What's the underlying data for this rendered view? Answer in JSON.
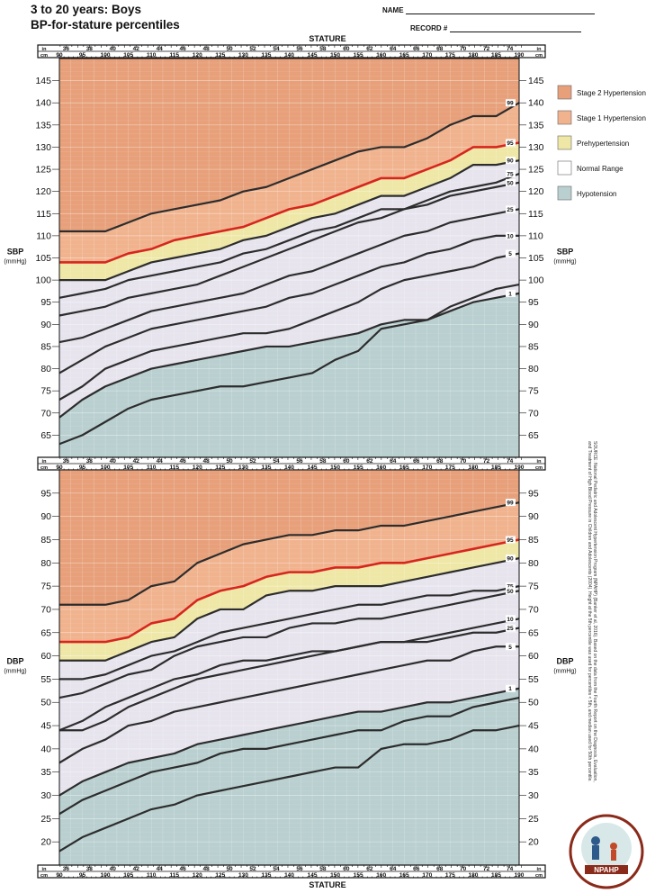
{
  "header": {
    "title_line1": "3 to 20 years: Boys",
    "title_line2": "BP-for-stature percentiles",
    "name_label": "NAME",
    "record_label": "RECORD #"
  },
  "colors": {
    "stage2": "#E7A07A",
    "stage1": "#F0B38E",
    "prehypertension": "#EEE7A6",
    "normal": "#E7E4EE",
    "hypotension": "#B9CFD0",
    "red_line": "#D7261E",
    "dark_line": "#2D2D2D"
  },
  "legend": [
    {
      "label": "Stage 2 Hypertension",
      "color": "#E7A07A"
    },
    {
      "label": "Stage 1 Hypertension",
      "color": "#F0B38E"
    },
    {
      "label": "Prehypertension",
      "color": "#EEE7A6"
    },
    {
      "label": "Normal Range",
      "color": "#FFFFFF"
    },
    {
      "label": "Hypotension",
      "color": "#B9CFD0"
    }
  ],
  "stature_axis": {
    "title": "STATURE",
    "in_label": "in",
    "cm_label": "cm",
    "inches": [
      "36",
      "38",
      "40",
      "42",
      "44",
      "46",
      "48",
      "50",
      "52",
      "54",
      "56",
      "58",
      "60",
      "62",
      "64",
      "66",
      "68",
      "70",
      "72",
      "74"
    ],
    "cm": [
      "90",
      "95",
      "100",
      "105",
      "110",
      "115",
      "120",
      "125",
      "130",
      "135",
      "140",
      "145",
      "150",
      "155",
      "160",
      "165",
      "170",
      "175",
      "180",
      "185",
      "190"
    ]
  },
  "source_note": "SOURCE: National Pediatric and Adolescent Hypertension Program (NPAHP) (Banker et al, 2016). Based on the data from the Fourth Report on the Diagnosis, Evaluation, and Treatment of High Blood Pressure in Children and Adolescents (2004). Height at the 5th percentile was used for percentiles < 5th, and median used for 50th percentile.",
  "logo_text": "NPAHP",
  "chart_data": [
    {
      "type": "line",
      "title": "SBP",
      "ylabel": "SBP (mmHg)",
      "xlabel": "STATURE",
      "x_unit": "cm",
      "ylim": [
        60,
        150
      ],
      "y_ticks": [
        65,
        70,
        75,
        80,
        85,
        90,
        95,
        100,
        105,
        110,
        115,
        120,
        125,
        130,
        135,
        140,
        145
      ],
      "x": [
        90,
        95,
        100,
        105,
        110,
        115,
        120,
        125,
        130,
        135,
        140,
        145,
        150,
        155,
        160,
        165,
        170,
        175,
        180,
        185,
        190
      ],
      "zones": [
        {
          "name": "Hypotension",
          "upper_series": "1st"
        },
        {
          "name": "Normal Range",
          "upper_series": "90th"
        },
        {
          "name": "Prehypertension",
          "upper_series": "95th"
        },
        {
          "name": "Stage 1 Hypertension",
          "upper_series": "99th"
        },
        {
          "name": "Stage 2 Hypertension",
          "upper_series": "top"
        }
      ],
      "series": [
        {
          "name": "99th",
          "label": "99",
          "color": "#2D2D2D",
          "values": [
            111,
            111,
            111,
            113,
            115,
            116,
            117,
            118,
            120,
            121,
            123,
            125,
            127,
            129,
            130,
            130,
            132,
            135,
            137,
            137,
            140
          ]
        },
        {
          "name": "95th",
          "label": "95",
          "color": "#D7261E",
          "values": [
            104,
            104,
            104,
            106,
            107,
            109,
            110,
            111,
            112,
            114,
            116,
            117,
            119,
            121,
            123,
            123,
            125,
            127,
            130,
            130,
            131
          ]
        },
        {
          "name": "90th",
          "label": "90",
          "color": "#2D2D2D",
          "values": [
            100,
            100,
            100,
            102,
            104,
            105,
            106,
            107,
            109,
            110,
            112,
            114,
            115,
            117,
            119,
            119,
            121,
            123,
            126,
            126,
            127
          ]
        },
        {
          "name": "75th",
          "label": "75",
          "color": "#2D2D2D",
          "values": [
            96,
            97,
            98,
            100,
            101,
            102,
            103,
            104,
            106,
            107,
            109,
            111,
            112,
            114,
            116,
            116,
            118,
            120,
            121,
            122,
            124
          ]
        },
        {
          "name": "50th",
          "label": "50",
          "color": "#2D2D2D",
          "values": [
            92,
            93,
            94,
            96,
            97,
            98,
            99,
            101,
            103,
            105,
            107,
            109,
            111,
            113,
            114,
            116,
            117,
            119,
            120,
            121,
            122
          ]
        },
        {
          "name": "25th",
          "label": "25",
          "color": "#2D2D2D",
          "values": [
            86,
            87,
            89,
            91,
            93,
            94,
            95,
            96,
            97,
            99,
            101,
            102,
            104,
            106,
            108,
            110,
            111,
            113,
            114,
            115,
            116
          ]
        },
        {
          "name": "10th",
          "label": "10",
          "color": "#2D2D2D",
          "values": [
            79,
            82,
            85,
            87,
            89,
            90,
            91,
            92,
            93,
            94,
            96,
            97,
            99,
            101,
            103,
            104,
            106,
            107,
            109,
            110,
            110
          ]
        },
        {
          "name": "5th",
          "label": "5",
          "color": "#2D2D2D",
          "values": [
            73,
            76,
            80,
            82,
            84,
            85,
            86,
            87,
            88,
            88,
            89,
            91,
            93,
            95,
            98,
            100,
            101,
            102,
            103,
            105,
            106
          ]
        },
        {
          "name": "1st",
          "label": "1",
          "color": "#2D2D2D",
          "values": [
            69,
            73,
            76,
            78,
            80,
            81,
            82,
            83,
            84,
            85,
            85,
            86,
            87,
            88,
            90,
            91,
            91,
            93,
            95,
            96,
            97
          ]
        },
        {
          "name": "lowest",
          "label": "",
          "color": "#2D2D2D",
          "values": [
            63,
            65,
            68,
            71,
            73,
            74,
            75,
            76,
            76,
            77,
            78,
            79,
            82,
            84,
            89,
            90,
            91,
            94,
            96,
            98,
            99
          ]
        }
      ]
    },
    {
      "type": "line",
      "title": "DBP",
      "ylabel": "DBP (mmHg)",
      "xlabel": "STATURE",
      "x_unit": "cm",
      "ylim": [
        15,
        100
      ],
      "y_ticks": [
        20,
        25,
        30,
        35,
        40,
        45,
        50,
        55,
        60,
        65,
        70,
        75,
        80,
        85,
        90,
        95
      ],
      "x": [
        90,
        95,
        100,
        105,
        110,
        115,
        120,
        125,
        130,
        135,
        140,
        145,
        150,
        155,
        160,
        165,
        170,
        175,
        180,
        185,
        190
      ],
      "zones": [
        {
          "name": "Hypotension",
          "upper_series": "1st"
        },
        {
          "name": "Normal Range",
          "upper_series": "90th"
        },
        {
          "name": "Prehypertension",
          "upper_series": "95th"
        },
        {
          "name": "Stage 1 Hypertension",
          "upper_series": "99th"
        },
        {
          "name": "Stage 2 Hypertension",
          "upper_series": "top"
        }
      ],
      "series": [
        {
          "name": "99th",
          "label": "99",
          "color": "#2D2D2D",
          "values": [
            71,
            71,
            71,
            72,
            75,
            76,
            80,
            82,
            84,
            85,
            86,
            86,
            87,
            87,
            88,
            88,
            89,
            90,
            91,
            92,
            93
          ]
        },
        {
          "name": "95th",
          "label": "95",
          "color": "#D7261E",
          "values": [
            63,
            63,
            63,
            64,
            67,
            68,
            72,
            74,
            75,
            77,
            78,
            78,
            79,
            79,
            80,
            80,
            81,
            82,
            83,
            84,
            85
          ]
        },
        {
          "name": "90th",
          "label": "90",
          "color": "#2D2D2D",
          "values": [
            59,
            59,
            59,
            61,
            63,
            64,
            68,
            70,
            70,
            73,
            74,
            74,
            75,
            75,
            75,
            76,
            77,
            78,
            79,
            80,
            81
          ]
        },
        {
          "name": "75th",
          "label": "75",
          "color": "#2D2D2D",
          "values": [
            55,
            55,
            56,
            58,
            60,
            61,
            63,
            65,
            66,
            67,
            68,
            69,
            70,
            71,
            71,
            72,
            73,
            73,
            74,
            74,
            75
          ]
        },
        {
          "name": "50th",
          "label": "50",
          "color": "#2D2D2D",
          "values": [
            51,
            52,
            54,
            56,
            57,
            60,
            62,
            63,
            64,
            64,
            66,
            67,
            67,
            68,
            68,
            69,
            70,
            71,
            72,
            73,
            74
          ]
        },
        {
          "name": "25th",
          "label": "25",
          "color": "#2D2D2D",
          "values": [
            44,
            46,
            49,
            51,
            53,
            55,
            56,
            58,
            59,
            59,
            60,
            61,
            61,
            62,
            63,
            63,
            63,
            64,
            65,
            65,
            66
          ]
        },
        {
          "name": "10th",
          "label": "10",
          "color": "#2D2D2D",
          "values": [
            44,
            44,
            46,
            49,
            51,
            53,
            55,
            56,
            57,
            58,
            59,
            60,
            61,
            62,
            63,
            63,
            64,
            65,
            66,
            67,
            68
          ]
        },
        {
          "name": "5th",
          "label": "5",
          "color": "#2D2D2D",
          "values": [
            37,
            40,
            42,
            45,
            46,
            48,
            49,
            50,
            51,
            52,
            53,
            54,
            55,
            56,
            57,
            58,
            59,
            59,
            61,
            62,
            62
          ]
        },
        {
          "name": "1st",
          "label": "1",
          "color": "#2D2D2D",
          "values": [
            30,
            33,
            35,
            37,
            38,
            39,
            41,
            42,
            43,
            44,
            45,
            46,
            47,
            48,
            48,
            49,
            50,
            50,
            51,
            52,
            53
          ]
        },
        {
          "name": "lowest",
          "label": "",
          "color": "#2D2D2D",
          "values": [
            26,
            29,
            31,
            33,
            35,
            36,
            37,
            39,
            40,
            40,
            41,
            42,
            43,
            44,
            44,
            46,
            47,
            47,
            49,
            50,
            51
          ]
        },
        {
          "name": "floor",
          "label": "",
          "color": "#2D2D2D",
          "values": [
            18,
            21,
            23,
            25,
            27,
            28,
            30,
            31,
            32,
            33,
            34,
            35,
            36,
            36,
            40,
            41,
            41,
            42,
            44,
            44,
            45
          ]
        }
      ]
    }
  ]
}
